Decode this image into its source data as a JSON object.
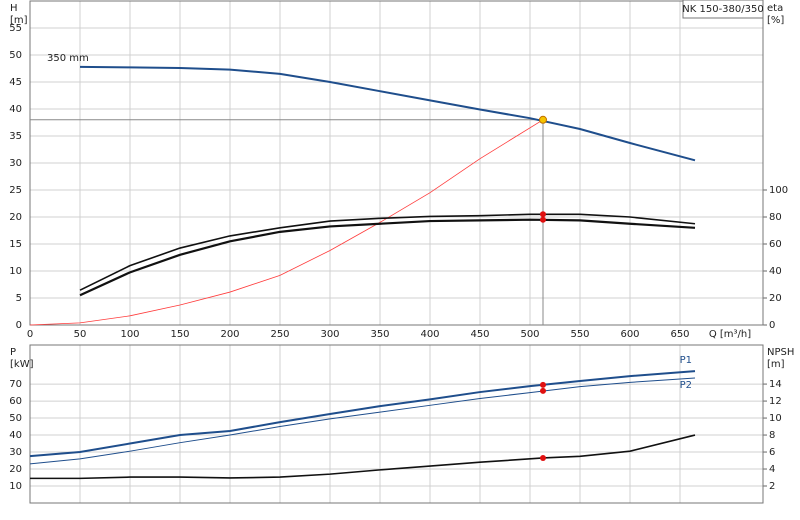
{
  "chart_data": [
    {
      "type": "line",
      "title": "NK 150-380/350",
      "ylabel": "H",
      "yunit": "[m]",
      "y2label": "eta",
      "y2unit": "[%]",
      "xlabel": "Q [m³/h]",
      "annotation": "350 mm",
      "xlim": [
        0,
        733
      ],
      "xticks": [
        0,
        50,
        100,
        150,
        200,
        250,
        300,
        350,
        400,
        450,
        500,
        550,
        600,
        650
      ],
      "show_xtick_labels": true,
      "ylim": [
        0,
        60
      ],
      "yticks": [
        0,
        5,
        10,
        15,
        20,
        25,
        30,
        35,
        40,
        45,
        50,
        55
      ],
      "y2lim": [
        0,
        240
      ],
      "y2ticks": [
        0,
        20,
        40,
        60,
        80,
        100
      ],
      "grid": true,
      "series": [
        {
          "color": "#1f4e8c",
          "width": 2,
          "x": [
            50,
            100,
            150,
            200,
            250,
            300,
            350,
            400,
            450,
            500,
            550,
            600,
            665
          ],
          "values": [
            47.8,
            47.7,
            47.6,
            47.3,
            46.5,
            45,
            43.3,
            41.6,
            39.9,
            38.3,
            36.3,
            33.7,
            30.5
          ]
        },
        {
          "color": "#ff3b3b",
          "width": 0.8,
          "x": [
            0,
            50,
            100,
            150,
            200,
            250,
            300,
            350,
            400,
            450,
            513
          ],
          "values": [
            0,
            0.4,
            1.7,
            3.7,
            6.1,
            9.2,
            13.8,
            19,
            24.5,
            30.8,
            38
          ]
        },
        {
          "color": "#111111",
          "width": 1.6,
          "axis": "y2",
          "x": [
            50,
            100,
            150,
            200,
            250,
            300,
            350,
            400,
            450,
            500,
            550,
            600,
            665
          ],
          "values": [
            25.8,
            44,
            57,
            66,
            72,
            77,
            79,
            80.4,
            81,
            82,
            82,
            80,
            75
          ]
        },
        {
          "color": "#111111",
          "width": 2.2,
          "axis": "y2",
          "x": [
            50,
            100,
            150,
            200,
            250,
            300,
            350,
            400,
            450,
            500,
            550,
            600,
            665
          ],
          "values": [
            22,
            39,
            52,
            62,
            69,
            73,
            75,
            77,
            77.5,
            78,
            77.5,
            75,
            72
          ]
        }
      ],
      "duty_point": {
        "x": 513,
        "y": 38,
        "color": "#f5c400"
      },
      "markers": [
        {
          "x": 513,
          "y": 82,
          "axis": "y2",
          "color": "#e01010"
        },
        {
          "x": 513,
          "y": 78,
          "axis": "y2",
          "color": "#e01010"
        }
      ]
    },
    {
      "type": "line",
      "ylabel": "P",
      "yunit": "[kW]",
      "y2label": "NPSH",
      "y2unit": "[m]",
      "xlim": [
        0,
        733
      ],
      "xticks": [
        0,
        50,
        100,
        150,
        200,
        250,
        300,
        350,
        400,
        450,
        500,
        550,
        600,
        650
      ],
      "show_xtick_labels": false,
      "ylim": [
        0,
        93
      ],
      "yticks": [
        10,
        20,
        30,
        40,
        50,
        60,
        70
      ],
      "y2lim": [
        0,
        18.6
      ],
      "y2ticks": [
        2,
        4,
        6,
        8,
        10,
        12,
        14
      ],
      "grid": true,
      "series": [
        {
          "name": "P1",
          "color": "#1f4e8c",
          "width": 2,
          "x": [
            0,
            50,
            100,
            150,
            200,
            250,
            300,
            350,
            400,
            450,
            500,
            550,
            600,
            665
          ],
          "values": [
            27.6,
            30,
            35,
            40,
            42.4,
            47.6,
            52.4,
            57,
            61,
            65.3,
            68.8,
            71.8,
            74.7,
            77.6
          ]
        },
        {
          "name": "P2",
          "color": "#1f4e8c",
          "width": 1,
          "x": [
            0,
            50,
            100,
            150,
            200,
            250,
            300,
            350,
            400,
            450,
            500,
            550,
            600,
            665
          ],
          "values": [
            23,
            26,
            30.5,
            35.5,
            40,
            45,
            49.5,
            53.5,
            57.5,
            61.5,
            65,
            68.5,
            71,
            73.6
          ]
        },
        {
          "color": "#111111",
          "width": 1.6,
          "axis": "y2",
          "x": [
            0,
            50,
            100,
            150,
            200,
            250,
            300,
            350,
            400,
            450,
            513,
            550,
            600,
            665
          ],
          "values": [
            2.9,
            2.9,
            3.05,
            3.05,
            2.95,
            3.05,
            3.4,
            3.9,
            4.35,
            4.8,
            5.3,
            5.5,
            6.1,
            8
          ]
        }
      ],
      "markers": [
        {
          "x": 513,
          "y": 69.5,
          "color": "#e01010"
        },
        {
          "x": 513,
          "y": 66,
          "color": "#e01010"
        },
        {
          "x": 513,
          "y": 5.3,
          "axis": "y2",
          "color": "#e01010"
        }
      ]
    }
  ]
}
